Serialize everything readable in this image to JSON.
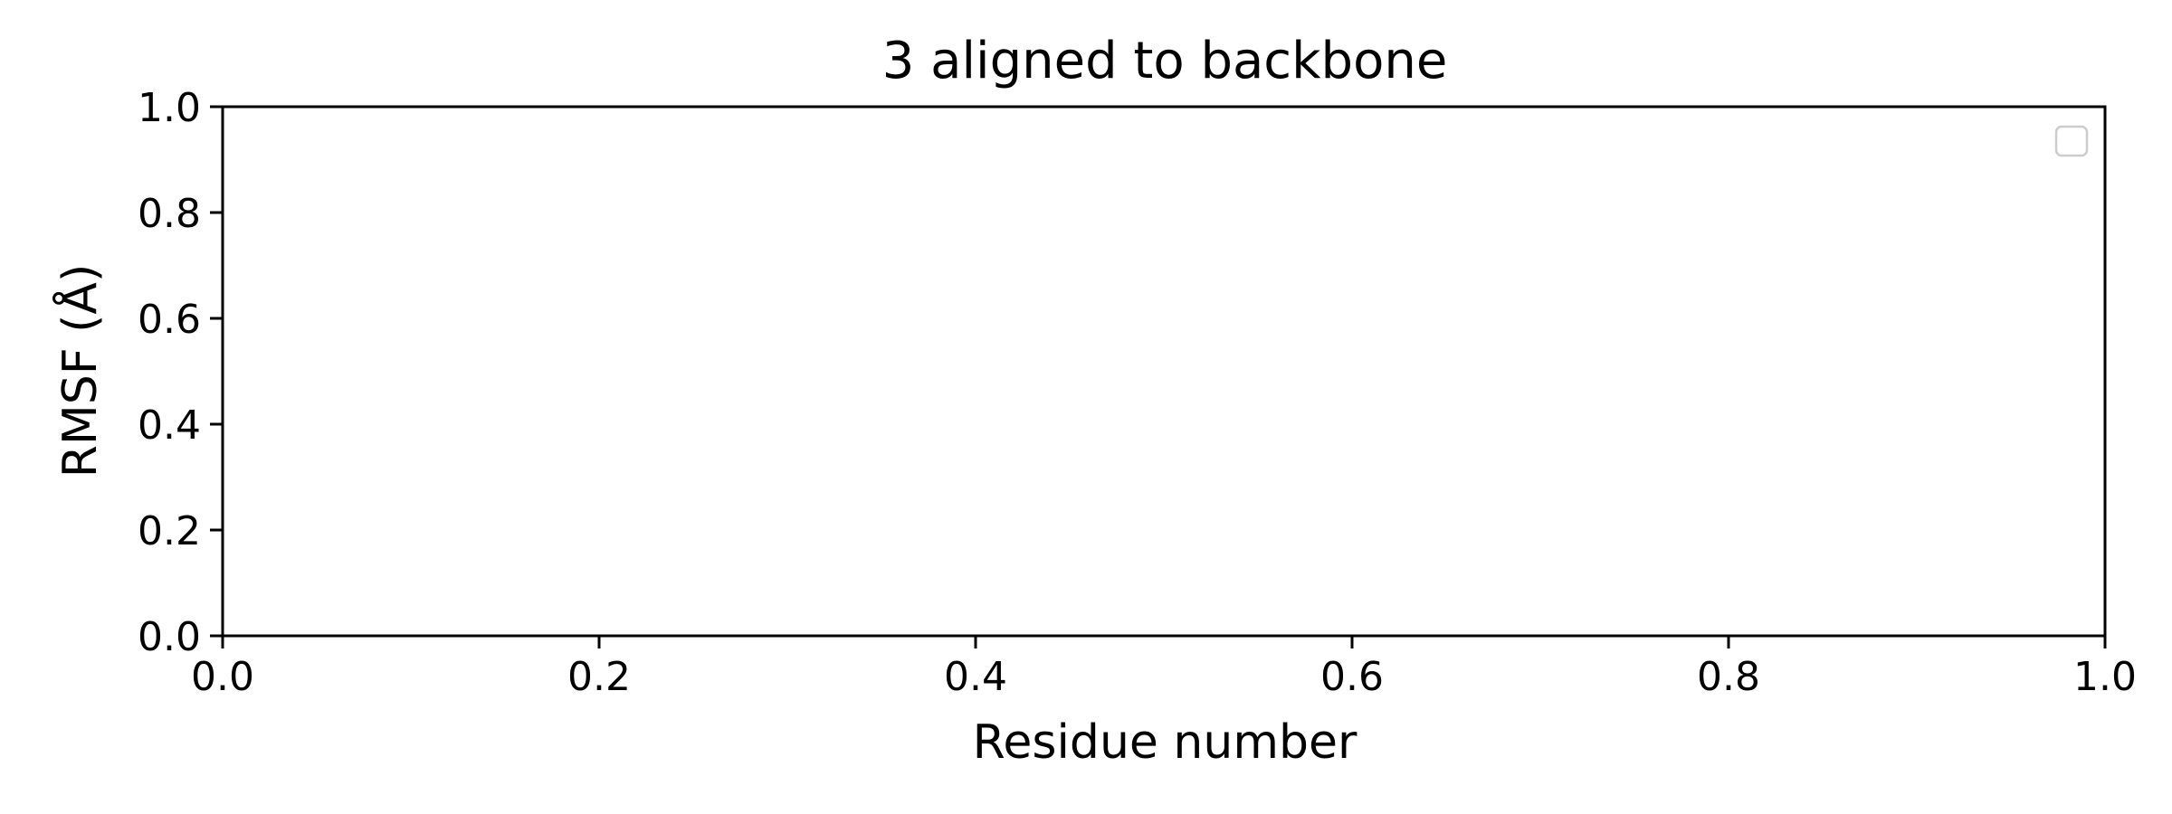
{
  "chart_data": {
    "type": "line",
    "title": "3 aligned to backbone",
    "xlabel": "Residue number",
    "ylabel": "RMSF (Å)",
    "xlim": [
      0.0,
      1.0
    ],
    "ylim": [
      0.0,
      1.0
    ],
    "x_ticks": [
      "0.0",
      "0.2",
      "0.4",
      "0.6",
      "0.8",
      "1.0"
    ],
    "y_ticks": [
      "0.0",
      "0.2",
      "0.4",
      "0.6",
      "0.8",
      "1.0"
    ],
    "series": [],
    "grid": false,
    "legend": {
      "placement": "upper right",
      "entries": []
    }
  }
}
